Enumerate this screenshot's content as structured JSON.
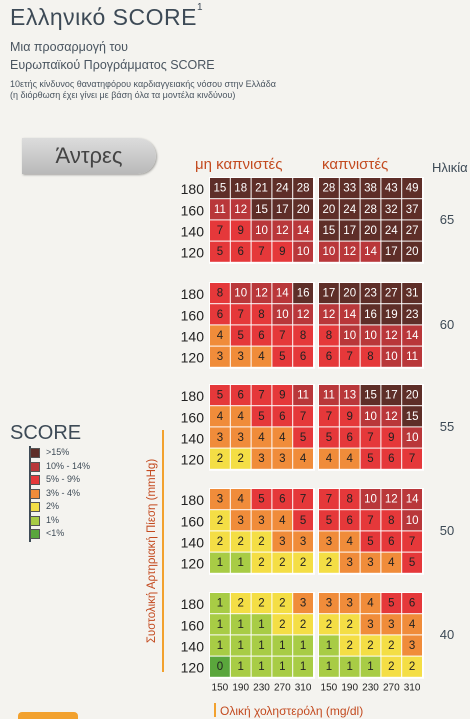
{
  "header": {
    "title": "Ελληνικό SCORE",
    "title_sup": "1",
    "subtitle_line1": "Μια προσαρμογή του",
    "subtitle_line2": "Ευρωπαϊκού Προγράμματος SCORE",
    "note_line1": "10ετής κίνδυνος θανατηφόρου καρδιαγγειακής νόσου στην Ελλάδα",
    "note_line2": "(η διόρθωση έχει γίνει με βάση όλα τα μοντέλα κινδύνου)"
  },
  "sex_label": "Άντρες",
  "colors": {
    "accent_orange": "#f2a12e",
    "text_dark": "#3d4a56",
    "header_red": "#c34a1f"
  },
  "legend": {
    "title": "SCORE",
    "items": [
      {
        "label": ">15%",
        "color": "#5e2e28"
      },
      {
        "label": "10% - 14%",
        "color": "#b9373a"
      },
      {
        "label": "5% - 9%",
        "color": "#e5383a"
      },
      {
        "label": "3% - 4%",
        "color": "#f08c3a"
      },
      {
        "label": "2%",
        "color": "#f4de45"
      },
      {
        "label": "1%",
        "color": "#a8cc45"
      },
      {
        "label": "<1%",
        "color": "#5aa63c"
      }
    ]
  },
  "chart_data": {
    "type": "heatmap",
    "column_groups": [
      "μη καπνιστές",
      "καπνιστές"
    ],
    "age_label": "Ηλικία",
    "ages": [
      "65",
      "60",
      "55",
      "50",
      "40"
    ],
    "sbp_values": [
      "180",
      "160",
      "140",
      "120"
    ],
    "cholesterol_values": [
      "150",
      "190",
      "230",
      "270",
      "310"
    ],
    "ylabel": "Συστολική Αρτηριακή Πίεση (mmHg)",
    "xlabel": "Ολική χοληστερόλη (mg/dl)",
    "blocks": [
      {
        "age": "65",
        "non_smokers": [
          [
            15,
            18,
            21,
            24,
            28
          ],
          [
            11,
            12,
            15,
            17,
            20
          ],
          [
            7,
            9,
            10,
            12,
            14
          ],
          [
            5,
            6,
            7,
            9,
            10
          ]
        ],
        "smokers": [
          [
            28,
            33,
            38,
            43,
            49
          ],
          [
            20,
            24,
            28,
            32,
            37
          ],
          [
            15,
            17,
            20,
            24,
            27
          ],
          [
            10,
            12,
            14,
            17,
            20
          ]
        ]
      },
      {
        "age": "60",
        "non_smokers": [
          [
            8,
            10,
            12,
            14,
            16
          ],
          [
            6,
            7,
            8,
            10,
            12
          ],
          [
            4,
            5,
            6,
            7,
            8
          ],
          [
            3,
            3,
            4,
            5,
            6
          ]
        ],
        "smokers": [
          [
            17,
            20,
            23,
            27,
            31
          ],
          [
            12,
            14,
            16,
            19,
            23
          ],
          [
            8,
            10,
            10,
            12,
            14
          ],
          [
            6,
            7,
            8,
            10,
            11
          ]
        ]
      },
      {
        "age": "55",
        "non_smokers": [
          [
            5,
            6,
            7,
            9,
            11
          ],
          [
            4,
            4,
            5,
            6,
            7
          ],
          [
            3,
            3,
            4,
            4,
            5
          ],
          [
            2,
            2,
            3,
            3,
            4
          ]
        ],
        "smokers": [
          [
            11,
            13,
            15,
            17,
            20
          ],
          [
            7,
            9,
            10,
            12,
            15
          ],
          [
            5,
            6,
            7,
            9,
            10
          ],
          [
            4,
            4,
            5,
            6,
            7
          ]
        ]
      },
      {
        "age": "50",
        "non_smokers": [
          [
            3,
            4,
            5,
            6,
            7
          ],
          [
            2,
            3,
            3,
            4,
            5
          ],
          [
            2,
            2,
            2,
            3,
            3
          ],
          [
            1,
            1,
            2,
            2,
            2
          ]
        ],
        "smokers": [
          [
            7,
            8,
            10,
            12,
            14
          ],
          [
            5,
            6,
            7,
            8,
            10
          ],
          [
            3,
            4,
            5,
            6,
            7
          ],
          [
            2,
            3,
            3,
            4,
            5
          ]
        ]
      },
      {
        "age": "40",
        "non_smokers": [
          [
            1,
            2,
            2,
            2,
            3
          ],
          [
            1,
            1,
            1,
            2,
            2
          ],
          [
            1,
            1,
            1,
            1,
            1
          ],
          [
            0,
            1,
            1,
            1,
            1
          ]
        ],
        "smokers": [
          [
            3,
            3,
            4,
            5,
            6
          ],
          [
            2,
            2,
            3,
            3,
            4
          ],
          [
            1,
            2,
            2,
            2,
            3
          ],
          [
            1,
            1,
            1,
            2,
            2
          ]
        ]
      }
    ]
  }
}
